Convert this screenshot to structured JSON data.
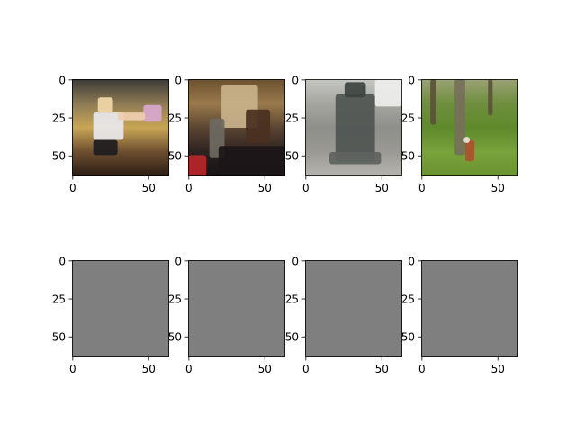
{
  "chart_data": {
    "type": "image-grid",
    "rows": 2,
    "cols": 4,
    "image_size": [
      64,
      64
    ],
    "x_ticks": [
      0,
      50
    ],
    "y_ticks": [
      0,
      25,
      50
    ],
    "panels": [
      {
        "row": 0,
        "col": 0,
        "kind": "photo",
        "content": "volleyball-player",
        "colors": {
          "top": "#3a3a36",
          "upper": "#8d7a55",
          "middle": "#c9a656",
          "lower": "#6b4d2f",
          "bottom": "#2b1d14"
        },
        "accents": [
          {
            "label": "player-shirt",
            "fill": "#e8e8ec",
            "x": 14,
            "y": 22,
            "w": 20,
            "h": 18
          },
          {
            "label": "player-shorts",
            "fill": "#1e1c1f",
            "x": 14,
            "y": 40,
            "w": 16,
            "h": 10
          },
          {
            "label": "player-head",
            "fill": "#f2d8a8",
            "x": 17,
            "y": 12,
            "w": 10,
            "h": 10
          },
          {
            "label": "ball",
            "fill": "#d9a7cf",
            "x": 47,
            "y": 17,
            "w": 12,
            "h": 11
          },
          {
            "label": "arms",
            "fill": "#efcfb0",
            "x": 30,
            "y": 22,
            "w": 18,
            "h": 5
          }
        ]
      },
      {
        "row": 0,
        "col": 1,
        "kind": "photo",
        "content": "church-interior",
        "colors": {
          "top": "#6b5130",
          "upper": "#9a7a4d",
          "middle": "#5b4532",
          "lower": "#2c2220",
          "bottom": "#161214"
        },
        "accents": [
          {
            "label": "arch-window",
            "fill": "#c9b28a",
            "x": 22,
            "y": 4,
            "w": 24,
            "h": 28
          },
          {
            "label": "person",
            "fill": "#6e6a62",
            "x": 14,
            "y": 26,
            "w": 10,
            "h": 26
          },
          {
            "label": "red-cloth",
            "fill": "#b8262a",
            "x": 0,
            "y": 50,
            "w": 12,
            "h": 14
          },
          {
            "label": "dark-pews",
            "fill": "#1c1618",
            "x": 20,
            "y": 44,
            "w": 44,
            "h": 20
          },
          {
            "label": "altar",
            "fill": "#4a3020",
            "x": 38,
            "y": 20,
            "w": 16,
            "h": 22
          }
        ]
      },
      {
        "row": 0,
        "col": 2,
        "kind": "photo",
        "content": "bronze-bell",
        "colors": {
          "top": "#c4c6c2",
          "upper": "#a6a6a0",
          "middle": "#8e8f8a",
          "lower": "#9a9994",
          "bottom": "#b6b4ae"
        },
        "accents": [
          {
            "label": "window",
            "fill": "#eeeeec",
            "x": 46,
            "y": 0,
            "w": 18,
            "h": 18
          },
          {
            "label": "bell-body",
            "fill": "#4f5552",
            "x": 20,
            "y": 10,
            "w": 26,
            "h": 44
          },
          {
            "label": "bell-top",
            "fill": "#3d4340",
            "x": 26,
            "y": 2,
            "w": 14,
            "h": 10
          },
          {
            "label": "bell-rim",
            "fill": "#5e6360",
            "x": 16,
            "y": 48,
            "w": 34,
            "h": 8
          }
        ]
      },
      {
        "row": 0,
        "col": 3,
        "kind": "photo",
        "content": "forest-grass",
        "colors": {
          "top": "#9aa276",
          "upper": "#6f8e3e",
          "middle": "#5f8a2c",
          "lower": "#78a23a",
          "bottom": "#6b9230"
        },
        "accents": [
          {
            "label": "tree-trunk-left",
            "fill": "#5a5236",
            "x": 6,
            "y": 0,
            "w": 4,
            "h": 30
          },
          {
            "label": "tree-trunk",
            "fill": "#76705a",
            "x": 22,
            "y": 0,
            "w": 7,
            "h": 50
          },
          {
            "label": "tree-trunk-right",
            "fill": "#5a5236",
            "x": 44,
            "y": 0,
            "w": 3,
            "h": 24
          },
          {
            "label": "red-object",
            "fill": "#b0502c",
            "x": 29,
            "y": 40,
            "w": 6,
            "h": 14
          },
          {
            "label": "white-object",
            "fill": "#e8e6df",
            "x": 28,
            "y": 38,
            "w": 4,
            "h": 4
          }
        ]
      },
      {
        "row": 1,
        "col": 0,
        "kind": "uniform",
        "fill": "#7f7f7f"
      },
      {
        "row": 1,
        "col": 1,
        "kind": "uniform",
        "fill": "#7f7f7f"
      },
      {
        "row": 1,
        "col": 2,
        "kind": "uniform",
        "fill": "#7f7f7f"
      },
      {
        "row": 1,
        "col": 3,
        "kind": "uniform",
        "fill": "#7f7f7f"
      }
    ]
  }
}
